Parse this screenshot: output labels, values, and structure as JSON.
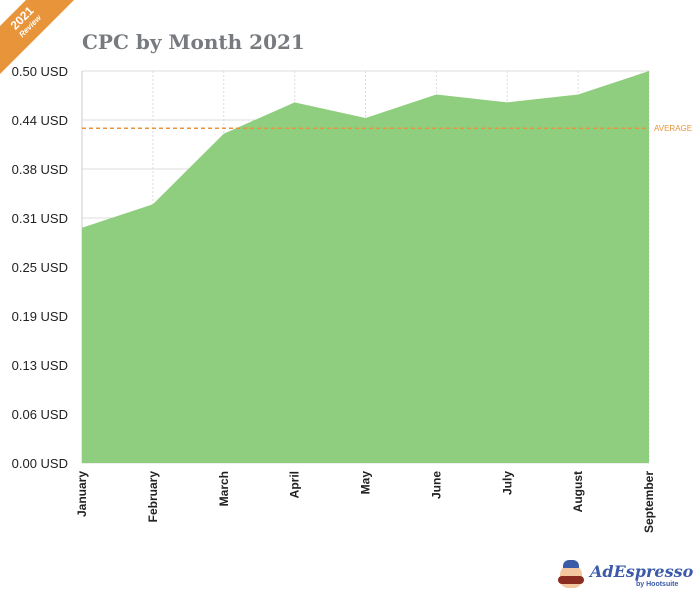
{
  "badge": {
    "year": "2021",
    "label": "Review"
  },
  "logo": {
    "name": "AdEspresso",
    "by": "by Hootsuite"
  },
  "chart_data": {
    "type": "area",
    "title": "CPC by Month 2021",
    "categories": [
      "January",
      "February",
      "March",
      "April",
      "May",
      "June",
      "July",
      "August",
      "September"
    ],
    "values": [
      0.3,
      0.33,
      0.42,
      0.46,
      0.44,
      0.47,
      0.46,
      0.47,
      0.5
    ],
    "yticks": [
      0,
      0.0625,
      0.125,
      0.1875,
      0.25,
      0.3125,
      0.375,
      0.4375,
      0.5
    ],
    "ytick_labels": [
      "0.00 USD",
      "0.06 USD",
      "0.13 USD",
      "0.19 USD",
      "0.25 USD",
      "0.31 USD",
      "0.38 USD",
      "0.44 USD",
      "0.50 USD"
    ],
    "ylim": [
      0,
      0.5
    ],
    "grid": true,
    "reference_line": {
      "label": "AVERAGE",
      "value": 0.427,
      "color": "#e8943a"
    },
    "fill_color": "#8fce7f"
  }
}
